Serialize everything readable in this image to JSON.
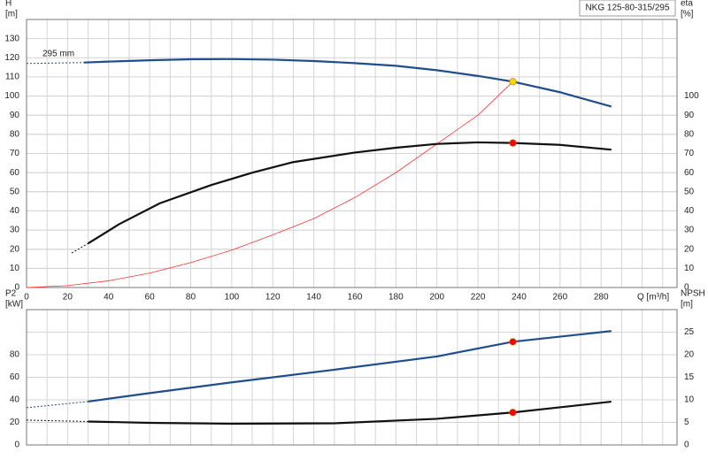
{
  "chart_data": [
    {
      "type": "line",
      "title": "NKG 125-80-315/295",
      "xlabel": "Q [m³/h]",
      "ylabel": [
        "H",
        "[m]"
      ],
      "y2label": [
        "eta",
        "[%]"
      ],
      "annotation": "295 mm",
      "xlim": [
        0,
        317
      ],
      "xticks": [
        0,
        20,
        40,
        60,
        80,
        100,
        120,
        140,
        160,
        180,
        200,
        220,
        240,
        260,
        280
      ],
      "xgrid": [
        10,
        30,
        50,
        70,
        90,
        110,
        130,
        150,
        170,
        190,
        210,
        230,
        250,
        270,
        290,
        300,
        310
      ],
      "ylim": [
        0,
        140
      ],
      "yticks": [
        0,
        10,
        20,
        30,
        40,
        50,
        60,
        70,
        80,
        90,
        100,
        110,
        120,
        130
      ],
      "y2lim": [
        0,
        140
      ],
      "y2ticks": [
        0,
        10,
        20,
        30,
        40,
        50,
        60,
        70,
        80,
        90,
        100
      ],
      "grid": true,
      "series": [
        {
          "style": "dashed",
          "color": "#1f4e8c",
          "x": [
            0,
            28
          ],
          "values": [
            117,
            117.5
          ]
        },
        {
          "style": "solid",
          "color": "#1f4e8c",
          "x": [
            28,
            40,
            60,
            80,
            100,
            120,
            140,
            160,
            180,
            200,
            220,
            237,
            260,
            285
          ],
          "values": [
            117.5,
            118,
            118.7,
            119.2,
            119.3,
            119,
            118.3,
            117.2,
            115.8,
            113.5,
            110.5,
            107.5,
            102,
            94.5
          ]
        },
        {
          "style": "thin",
          "color": "#ff3030",
          "x": [
            0,
            20,
            40,
            60,
            80,
            100,
            120,
            140,
            160,
            180,
            200,
            220,
            237
          ],
          "values": [
            0,
            1,
            3.5,
            7.5,
            13,
            19.5,
            27.5,
            36,
            47,
            60,
            75,
            90,
            107.5
          ]
        },
        {
          "style": "dashed",
          "color": "#111111",
          "axis": "y2",
          "x": [
            22,
            30
          ],
          "values": [
            18,
            23
          ]
        },
        {
          "style": "solid",
          "color": "#111111",
          "axis": "y2",
          "x": [
            30,
            45,
            65,
            90,
            110,
            130,
            160,
            180,
            200,
            220,
            237,
            260,
            285
          ],
          "values": [
            23,
            33,
            44,
            53.5,
            60,
            65.5,
            70.5,
            73,
            75,
            75.8,
            75.5,
            74.5,
            72
          ]
        },
        {
          "style": "point",
          "color": "#ffd700",
          "x": [
            237
          ],
          "values": [
            107.5
          ]
        },
        {
          "style": "point",
          "color": "#ff0000",
          "axis": "y2",
          "x": [
            237
          ],
          "values": [
            75.5
          ]
        }
      ]
    },
    {
      "type": "line",
      "ylabel": [
        "P2",
        "[kW]"
      ],
      "y2label": [
        "NPSH",
        "[m]"
      ],
      "xlim": [
        0,
        317
      ],
      "xgrid": [
        0,
        10,
        20,
        30,
        40,
        50,
        60,
        70,
        80,
        90,
        100,
        110,
        120,
        130,
        140,
        150,
        160,
        170,
        180,
        190,
        200,
        210,
        220,
        230,
        240,
        250,
        260,
        270,
        280,
        290,
        300,
        310
      ],
      "ylim": [
        0,
        120
      ],
      "yticks": [
        0,
        20,
        40,
        60,
        80
      ],
      "y2lim": [
        0,
        30
      ],
      "y2ticks": [
        0,
        5,
        10,
        15,
        20,
        25
      ],
      "grid": true,
      "series": [
        {
          "style": "dashed",
          "color": "#1f4e8c",
          "x": [
            0,
            30
          ],
          "values": [
            33,
            38.5
          ]
        },
        {
          "style": "solid",
          "color": "#1f4e8c",
          "x": [
            30,
            60,
            100,
            150,
            200,
            237,
            285
          ],
          "values": [
            38.5,
            46,
            55.5,
            66.7,
            78.5,
            91.5,
            101
          ]
        },
        {
          "style": "dashed",
          "color": "#111111",
          "axis": "y2",
          "x": [
            0,
            30
          ],
          "values": [
            5.5,
            5.2
          ]
        },
        {
          "style": "solid",
          "color": "#111111",
          "axis": "y2",
          "x": [
            30,
            60,
            100,
            150,
            200,
            237,
            285
          ],
          "values": [
            5.2,
            4.9,
            4.7,
            4.8,
            5.8,
            7.2,
            9.6
          ]
        },
        {
          "style": "point",
          "color": "#ff0000",
          "x": [
            237
          ],
          "values": [
            91.5
          ]
        },
        {
          "style": "point",
          "color": "#ff0000",
          "axis": "y2",
          "x": [
            237
          ],
          "values": [
            7.2
          ]
        }
      ]
    }
  ]
}
